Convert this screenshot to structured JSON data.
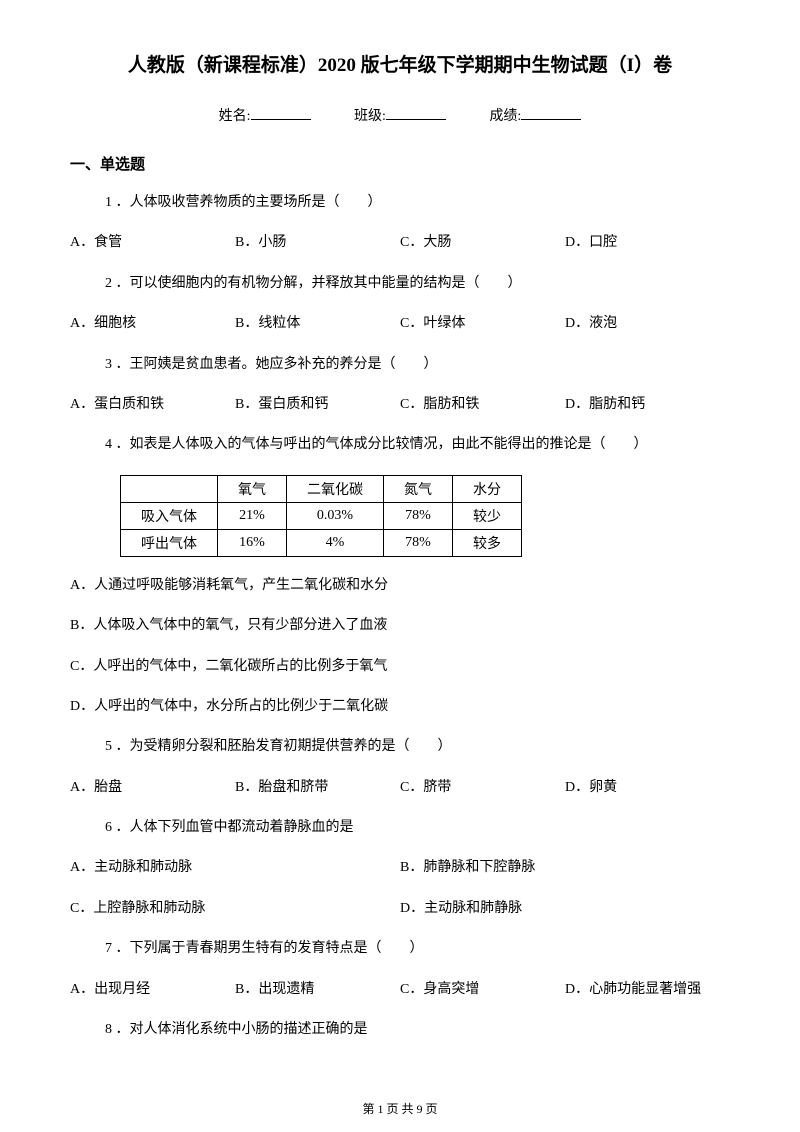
{
  "title": "人教版（新课程标准）2020 版七年级下学期期中生物试题（I）卷",
  "form": {
    "name_label": "姓名:",
    "class_label": "班级:",
    "score_label": "成绩:"
  },
  "section1": "一、单选题",
  "q1": {
    "text": "1 ．人体吸收营养物质的主要场所是（　　）",
    "optA": "A．食管",
    "optB": "B．小肠",
    "optC": "C．大肠",
    "optD": "D．口腔"
  },
  "q2": {
    "text": "2 ．可以使细胞内的有机物分解，并释放其中能量的结构是（　　）",
    "optA": "A．细胞核",
    "optB": "B．线粒体",
    "optC": "C．叶绿体",
    "optD": "D．液泡"
  },
  "q3": {
    "text": "3 ．王阿姨是贫血患者。她应多补充的养分是（　　）",
    "optA": "A．蛋白质和铁",
    "optB": "B．蛋白质和钙",
    "optC": "C．脂肪和铁",
    "optD": "D．脂肪和钙"
  },
  "q4": {
    "text": "4 ．如表是人体吸入的气体与呼出的气体成分比较情况，由此不能得出的推论是（　　）",
    "table": {
      "headers": [
        "",
        "氧气",
        "二氧化碳",
        "氮气",
        "水分"
      ],
      "row1": [
        "吸入气体",
        "21%",
        "0.03%",
        "78%",
        "较少"
      ],
      "row2": [
        "呼出气体",
        "16%",
        "4%",
        "78%",
        "较多"
      ]
    },
    "optA": "A．人通过呼吸能够消耗氧气，产生二氧化碳和水分",
    "optB": "B．人体吸入气体中的氧气，只有少部分进入了血液",
    "optC": "C．人呼出的气体中，二氧化碳所占的比例多于氧气",
    "optD": "D．人呼出的气体中，水分所占的比例少于二氧化碳"
  },
  "q5": {
    "text": "5 ．为受精卵分裂和胚胎发育初期提供营养的是（　　）",
    "optA": "A．胎盘",
    "optB": "B．胎盘和脐带",
    "optC": "C．脐带",
    "optD": "D．卵黄"
  },
  "q6": {
    "text": "6 ．人体下列血管中都流动着静脉血的是",
    "optA": "A．主动脉和肺动脉",
    "optB": "B．肺静脉和下腔静脉",
    "optC": "C．上腔静脉和肺动脉",
    "optD": "D．主动脉和肺静脉"
  },
  "q7": {
    "text": "7 ．下列属于青春期男生特有的发育特点是（　　）",
    "optA": "A．出现月经",
    "optB": "B．出现遗精",
    "optC": "C．身高突增",
    "optD": "D．心肺功能显著增强"
  },
  "q8": {
    "text": "8 ．对人体消化系统中小肠的描述正确的是"
  },
  "footer": "第 1 页 共 9 页"
}
